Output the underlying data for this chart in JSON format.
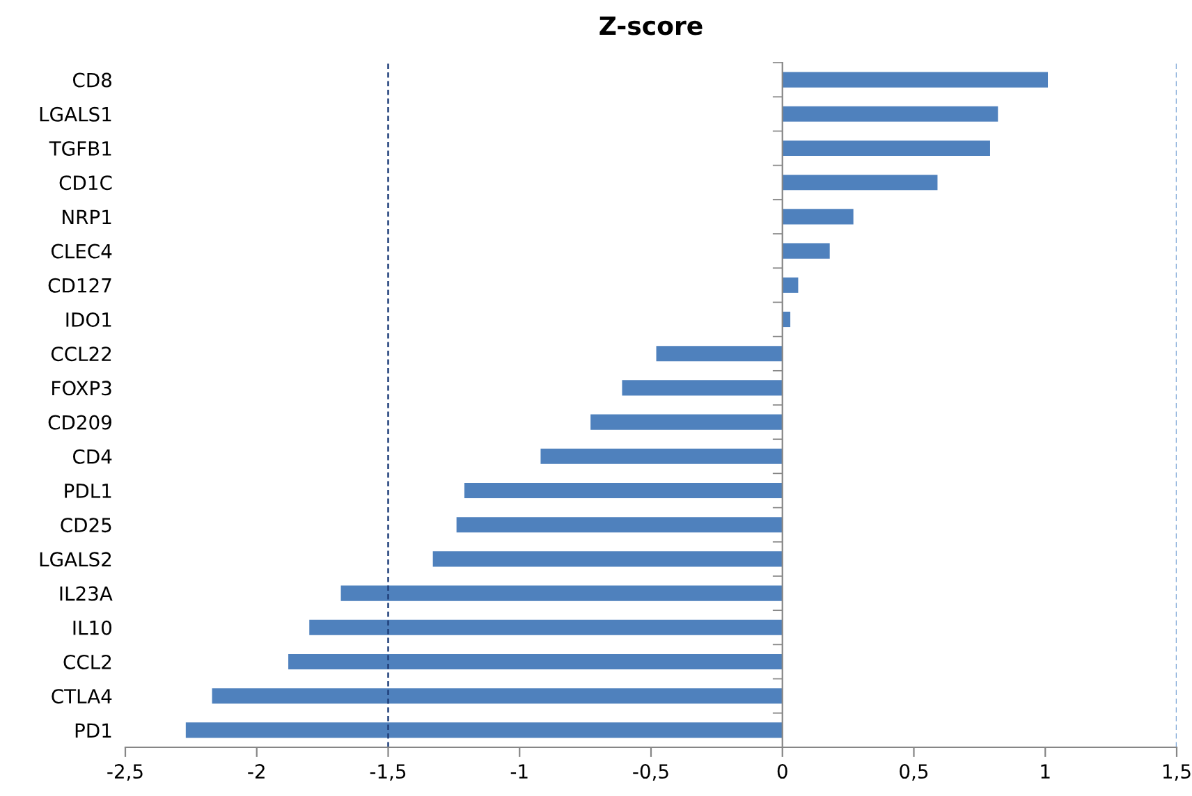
{
  "chart_data": {
    "type": "bar",
    "orientation": "horizontal",
    "title": "Z-score",
    "categories": [
      "CD8",
      "LGALS1",
      "TGFB1",
      "CD1C",
      "NRP1",
      "CLEC4",
      "CD127",
      "IDO1",
      "CCL22",
      "FOXP3",
      "CD209",
      "CD4",
      "PDL1",
      "CD25",
      "LGALS2",
      "IL23A",
      "IL10",
      "CCL2",
      "CTLA4",
      "PD1"
    ],
    "values": [
      1.01,
      0.82,
      0.79,
      0.59,
      0.27,
      0.18,
      0.06,
      0.03,
      -0.48,
      -0.61,
      -0.73,
      -0.92,
      -1.21,
      -1.24,
      -1.33,
      -1.68,
      -1.8,
      -1.88,
      -2.17,
      -2.27
    ],
    "color": "#4f81bd",
    "xlim": [
      -2.5,
      1.5
    ],
    "xticks": [
      {
        "value": -2.5,
        "label": "-2,5"
      },
      {
        "value": -2,
        "label": "-2"
      },
      {
        "value": -1.5,
        "label": "-1,5"
      },
      {
        "value": -1,
        "label": "-1"
      },
      {
        "value": -0.5,
        "label": "-0,5"
      },
      {
        "value": 0,
        "label": "0"
      },
      {
        "value": 0.5,
        "label": "0,5"
      },
      {
        "value": 1,
        "label": "1"
      },
      {
        "value": 1.5,
        "label": "1,5"
      }
    ],
    "ref_lines": [
      {
        "axis": "x",
        "value": -1.5,
        "color": "#1f3f7a",
        "line_style": "dashed"
      },
      {
        "axis": "x",
        "value": 1.5,
        "color": "#7fa7d6",
        "line_style": "dashed"
      }
    ],
    "grid": false,
    "legend": false
  }
}
